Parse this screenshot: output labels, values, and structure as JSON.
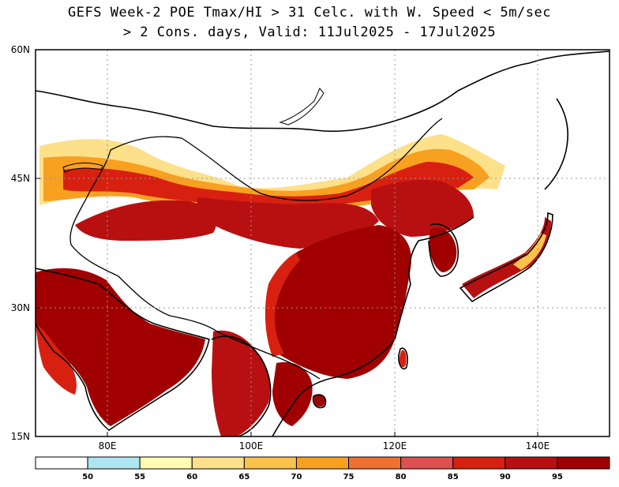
{
  "title_line1": "GEFS Week-2 POE Tmax/HI > 31 Celc. with W. Speed < 5m/sec",
  "title_line2": "> 2 Cons. days, Valid: 11Jul2025 - 17Jul2025",
  "map": {
    "lat_labels": [
      "60N",
      "45N",
      "30N",
      "15N"
    ],
    "lon_labels": [
      "80E",
      "100E",
      "120E",
      "140E"
    ],
    "lat_values": [
      60,
      45,
      30,
      15
    ],
    "lon_values": [
      80,
      100,
      120,
      140
    ],
    "extent": {
      "lon_min": 70,
      "lon_max": 150,
      "lat_min": 15,
      "lat_max": 60
    },
    "grid": true
  },
  "colorbar": {
    "labels": [
      "50",
      "55",
      "60",
      "65",
      "70",
      "75",
      "80",
      "85",
      "90",
      "95"
    ],
    "colors": [
      "#ffffff",
      "#aee6f0",
      "#fffbb0",
      "#fde08a",
      "#fbc24c",
      "#f8a020",
      "#f07030",
      "#e05050",
      "#d82010",
      "#b81010",
      "#a00000"
    ]
  }
}
